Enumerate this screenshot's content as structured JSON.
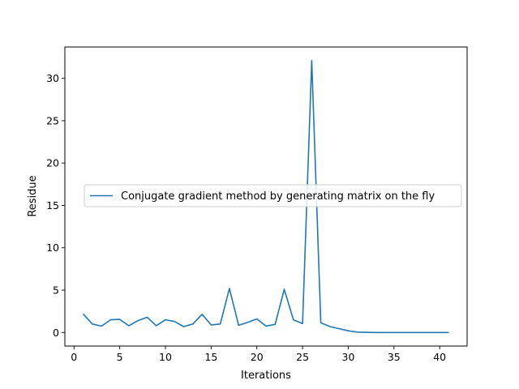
{
  "chart_data": {
    "type": "line",
    "title": "",
    "xlabel": "Iterations",
    "ylabel": "Residue",
    "xlim": [
      -1,
      43
    ],
    "ylim": [
      -1.6,
      33.7
    ],
    "xticks": [
      0,
      5,
      10,
      15,
      20,
      25,
      30,
      35,
      40
    ],
    "yticks": [
      0,
      5,
      10,
      15,
      20,
      25,
      30
    ],
    "grid": false,
    "legend_position": "center-left",
    "series": [
      {
        "name": "Conjugate gradient method by generating matrix on the fly",
        "color": "#1f77b4",
        "x": [
          1,
          2,
          3,
          4,
          5,
          6,
          7,
          8,
          9,
          10,
          11,
          12,
          13,
          14,
          15,
          16,
          17,
          18,
          19,
          20,
          21,
          22,
          23,
          24,
          25,
          26,
          27,
          28,
          29,
          30,
          31,
          32,
          33,
          34,
          35,
          36,
          37,
          38,
          39,
          40,
          41
        ],
        "y": [
          2.2,
          1.0,
          0.75,
          1.5,
          1.55,
          0.8,
          1.4,
          1.8,
          0.8,
          1.5,
          1.3,
          0.7,
          1.0,
          2.15,
          0.9,
          1.0,
          5.2,
          0.85,
          1.2,
          1.6,
          0.75,
          0.95,
          5.1,
          1.5,
          1.05,
          32.1,
          1.15,
          0.7,
          0.45,
          0.2,
          0.05,
          0.02,
          0.0,
          0.0,
          0.0,
          0.0,
          0.0,
          0.0,
          0.0,
          0.0,
          0.0
        ]
      }
    ]
  }
}
